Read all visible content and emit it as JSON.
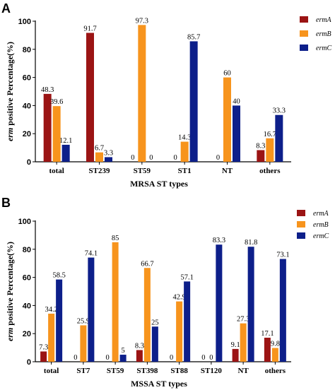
{
  "chart_data": [
    {
      "panel": "A",
      "type": "bar",
      "categories": [
        "total",
        "ST239",
        "ST59",
        "ST1",
        "NT",
        "others"
      ],
      "series": [
        {
          "name": "ermA",
          "color": "#9b1414",
          "values": [
            48.3,
            91.7,
            0,
            0,
            0,
            8.3
          ]
        },
        {
          "name": "ermB",
          "color": "#f7941d",
          "values": [
            39.6,
            6.7,
            97.3,
            14.3,
            60,
            16.7
          ]
        },
        {
          "name": "ermC",
          "color": "#0d1f8a",
          "values": [
            12.1,
            3.3,
            0,
            85.7,
            40,
            33.3
          ]
        }
      ],
      "data_labels": [
        [
          "48.3",
          "91.7",
          "0",
          "0",
          "0",
          "8.3"
        ],
        [
          "39.6",
          "6.7",
          "97.3",
          "14.3",
          "60",
          "16.7"
        ],
        [
          "12.1",
          "3.3",
          "0",
          "85.7",
          "40",
          "33.3"
        ]
      ],
      "xlabel": "MRSA ST types",
      "ylabel_prefix": "erm",
      "ylabel_rest": " positive Percentage(%)",
      "ylim": [
        0,
        100
      ],
      "yticks": [
        0,
        20,
        40,
        60,
        80,
        100
      ],
      "legend": "top-right",
      "grid": false
    },
    {
      "panel": "B",
      "type": "bar",
      "categories": [
        "total",
        "ST7",
        "ST59",
        "ST398",
        "ST88",
        "ST120",
        "NT",
        "others"
      ],
      "series": [
        {
          "name": "ermA",
          "color": "#9b1414",
          "values": [
            7.3,
            0,
            0,
            8.3,
            0,
            0,
            9.1,
            17.1
          ]
        },
        {
          "name": "ermB",
          "color": "#f7941d",
          "values": [
            34.2,
            25.9,
            85,
            66.7,
            42.9,
            0,
            27.3,
            9.8
          ]
        },
        {
          "name": "ermC",
          "color": "#0d1f8a",
          "values": [
            58.5,
            74.1,
            5,
            25,
            57.1,
            83.3,
            81.8,
            73.1
          ]
        }
      ],
      "data_labels": [
        [
          "7.3",
          "0",
          "0",
          "8.3",
          "0",
          "0",
          "9.1",
          "17.1"
        ],
        [
          "34.2",
          "25.9",
          "85",
          "66.7",
          "42.9",
          "0",
          "27.3",
          "9.8"
        ],
        [
          "58.5",
          "74.1",
          "5",
          "25",
          "57.1",
          "83.3",
          "81.8",
          "73.1"
        ]
      ],
      "xlabel": "MSSA ST types",
      "ylabel_prefix": "erm",
      "ylabel_rest": " positive Percentage(%)",
      "ylim": [
        0,
        100
      ],
      "yticks": [
        0,
        20,
        40,
        60,
        80,
        100
      ],
      "legend": "top-right",
      "grid": false
    }
  ]
}
